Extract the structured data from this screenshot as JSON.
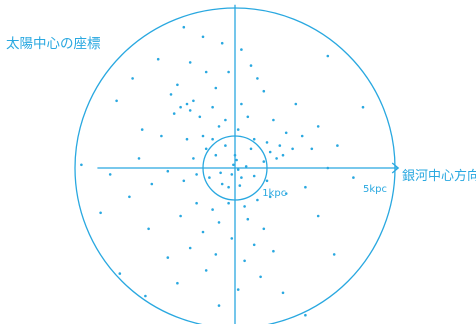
{
  "colors": {
    "accent": "#29a8e0",
    "background": "#ffffff"
  },
  "chart_data": {
    "type": "scatter",
    "title": "太陽中心の座標",
    "x_axis_label": "銀河中心方向",
    "units": "kpc",
    "x_range": [
      -5.5,
      5.5
    ],
    "y_range": [
      -5.5,
      5.5
    ],
    "rings": [
      {
        "radius": 1,
        "label": "1kpc"
      },
      {
        "radius": 5,
        "label": "5kpc"
      }
    ],
    "grid": false,
    "legend": "none",
    "points": [
      [
        -1.6,
        4.4
      ],
      [
        -1.0,
        4.1
      ],
      [
        -0.4,
        3.9
      ],
      [
        0.2,
        3.7
      ],
      [
        -2.4,
        3.4
      ],
      [
        -1.4,
        3.3
      ],
      [
        0.5,
        3.2
      ],
      [
        -0.9,
        3.0
      ],
      [
        -3.2,
        2.8
      ],
      [
        -1.8,
        2.6
      ],
      [
        -0.6,
        2.5
      ],
      [
        0.9,
        2.4
      ],
      [
        -1.3,
        2.1
      ],
      [
        -1.5,
        2.0
      ],
      [
        -1.7,
        1.9
      ],
      [
        -1.4,
        1.8
      ],
      [
        -1.9,
        1.7
      ],
      [
        -1.1,
        1.6
      ],
      [
        -0.7,
        1.9
      ],
      [
        -0.3,
        1.5
      ],
      [
        0.4,
        1.6
      ],
      [
        1.2,
        1.5
      ],
      [
        -0.5,
        1.3
      ],
      [
        0.1,
        1.2
      ],
      [
        1.6,
        1.1
      ],
      [
        2.1,
        1.0
      ],
      [
        -1.0,
        1.0
      ],
      [
        0.6,
        0.9
      ],
      [
        1.0,
        0.8
      ],
      [
        1.4,
        0.7
      ],
      [
        1.8,
        0.6
      ],
      [
        2.4,
        0.6
      ],
      [
        1.1,
        0.5
      ],
      [
        1.5,
        0.4
      ],
      [
        1.3,
        0.3
      ],
      [
        0.9,
        0.2
      ],
      [
        -0.9,
        0.6
      ],
      [
        -0.6,
        0.4
      ],
      [
        -0.3,
        0.7
      ],
      [
        0.0,
        0.4
      ],
      [
        0.05,
        0.25
      ],
      [
        -0.05,
        0.1
      ],
      [
        0.1,
        -0.05
      ],
      [
        -0.1,
        -0.2
      ],
      [
        0.2,
        -0.3
      ],
      [
        0.15,
        -0.55
      ],
      [
        -0.2,
        -0.6
      ],
      [
        0.35,
        0.05
      ],
      [
        -0.45,
        -0.15
      ],
      [
        0.6,
        -0.25
      ],
      [
        -0.8,
        -0.3
      ],
      [
        -1.2,
        -0.2
      ],
      [
        -1.6,
        -0.4
      ],
      [
        -2.1,
        -0.1
      ],
      [
        -2.6,
        -0.5
      ],
      [
        -3.0,
        0.3
      ],
      [
        -3.9,
        -0.2
      ],
      [
        -4.8,
        0.1
      ],
      [
        3.7,
        -0.3
      ],
      [
        2.9,
        0.0
      ],
      [
        2.2,
        -0.6
      ],
      [
        1.6,
        -0.8
      ],
      [
        1.1,
        -0.9
      ],
      [
        0.7,
        -1.0
      ],
      [
        0.3,
        -1.2
      ],
      [
        -0.2,
        -1.1
      ],
      [
        -0.7,
        -1.3
      ],
      [
        -1.2,
        -1.1
      ],
      [
        -1.7,
        -1.5
      ],
      [
        -0.5,
        -1.7
      ],
      [
        0.4,
        -1.6
      ],
      [
        0.9,
        -1.9
      ],
      [
        -1.0,
        -2.0
      ],
      [
        -0.1,
        -2.2
      ],
      [
        0.6,
        -2.4
      ],
      [
        -1.4,
        -2.5
      ],
      [
        -0.6,
        -2.7
      ],
      [
        0.3,
        -2.9
      ],
      [
        1.2,
        -2.6
      ],
      [
        -2.1,
        -2.8
      ],
      [
        -0.9,
        -3.2
      ],
      [
        0.8,
        -3.4
      ],
      [
        -1.8,
        -3.6
      ],
      [
        0.1,
        -3.8
      ],
      [
        1.5,
        -3.9
      ],
      [
        -2.8,
        -4.0
      ],
      [
        -0.5,
        -4.3
      ],
      [
        2.2,
        -4.6
      ],
      [
        -3.6,
        -3.3
      ],
      [
        3.1,
        -2.7
      ],
      [
        -4.2,
        -1.4
      ],
      [
        4.0,
        1.9
      ],
      [
        -3.7,
        2.1
      ],
      [
        2.9,
        3.5
      ],
      [
        -2.7,
        -1.9
      ],
      [
        2.6,
        -1.5
      ],
      [
        -0.2,
        3.0
      ],
      [
        0.7,
        2.8
      ],
      [
        -2.0,
        2.3
      ],
      [
        1.9,
        2.0
      ],
      [
        -2.9,
        1.2
      ],
      [
        2.6,
        1.3
      ],
      [
        -3.3,
        -0.9
      ],
      [
        3.2,
        0.7
      ],
      [
        -1.3,
        0.3
      ],
      [
        -0.4,
        -0.5
      ],
      [
        0.5,
        0.6
      ],
      [
        -0.7,
        0.9
      ],
      [
        1.0,
        -0.4
      ],
      [
        -1.5,
        0.9
      ],
      [
        0.2,
        2.0
      ],
      [
        -2.3,
        1.0
      ]
    ]
  }
}
